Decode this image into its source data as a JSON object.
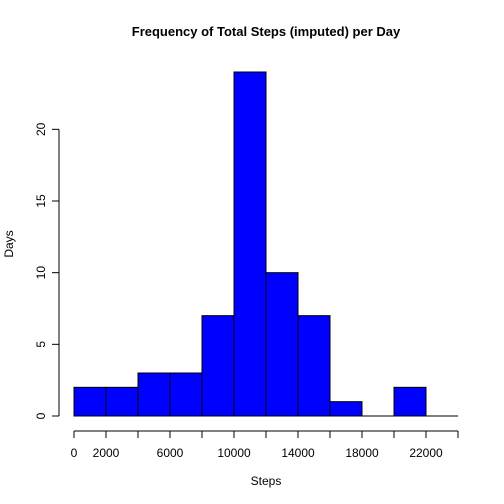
{
  "chart_data": {
    "type": "bar",
    "subtype": "histogram",
    "title": "Frequency of Total Steps (imputed) per Day",
    "xlabel": "Steps",
    "ylabel": "Days",
    "bins": [
      {
        "start": 0,
        "end": 2000,
        "count": 2
      },
      {
        "start": 2000,
        "end": 4000,
        "count": 2
      },
      {
        "start": 4000,
        "end": 6000,
        "count": 3
      },
      {
        "start": 6000,
        "end": 8000,
        "count": 3
      },
      {
        "start": 8000,
        "end": 10000,
        "count": 7
      },
      {
        "start": 10000,
        "end": 12000,
        "count": 24
      },
      {
        "start": 12000,
        "end": 14000,
        "count": 10
      },
      {
        "start": 14000,
        "end": 16000,
        "count": 7
      },
      {
        "start": 16000,
        "end": 18000,
        "count": 1
      },
      {
        "start": 18000,
        "end": 20000,
        "count": 0
      },
      {
        "start": 20000,
        "end": 22000,
        "count": 2
      },
      {
        "start": 22000,
        "end": 24000,
        "count": 0
      }
    ],
    "xlim": [
      0,
      24000
    ],
    "ylim": [
      0,
      24
    ],
    "x_ticks": [
      0,
      2000,
      4000,
      6000,
      8000,
      10000,
      12000,
      14000,
      16000,
      18000,
      20000,
      22000,
      24000
    ],
    "x_tick_labels": [
      {
        "value": 0,
        "label": "0"
      },
      {
        "value": 2000,
        "label": "2000"
      },
      {
        "value": 6000,
        "label": "6000"
      },
      {
        "value": 10000,
        "label": "10000"
      },
      {
        "value": 14000,
        "label": "14000"
      },
      {
        "value": 18000,
        "label": "18000"
      },
      {
        "value": 22000,
        "label": "22000"
      }
    ],
    "y_ticks": [
      0,
      5,
      10,
      15,
      20
    ],
    "y_tick_labels": [
      "0",
      "5",
      "10",
      "15",
      "20"
    ],
    "bar_color": "#0000FF",
    "bar_border_color": "#000000",
    "grid": false,
    "legend": "none"
  }
}
